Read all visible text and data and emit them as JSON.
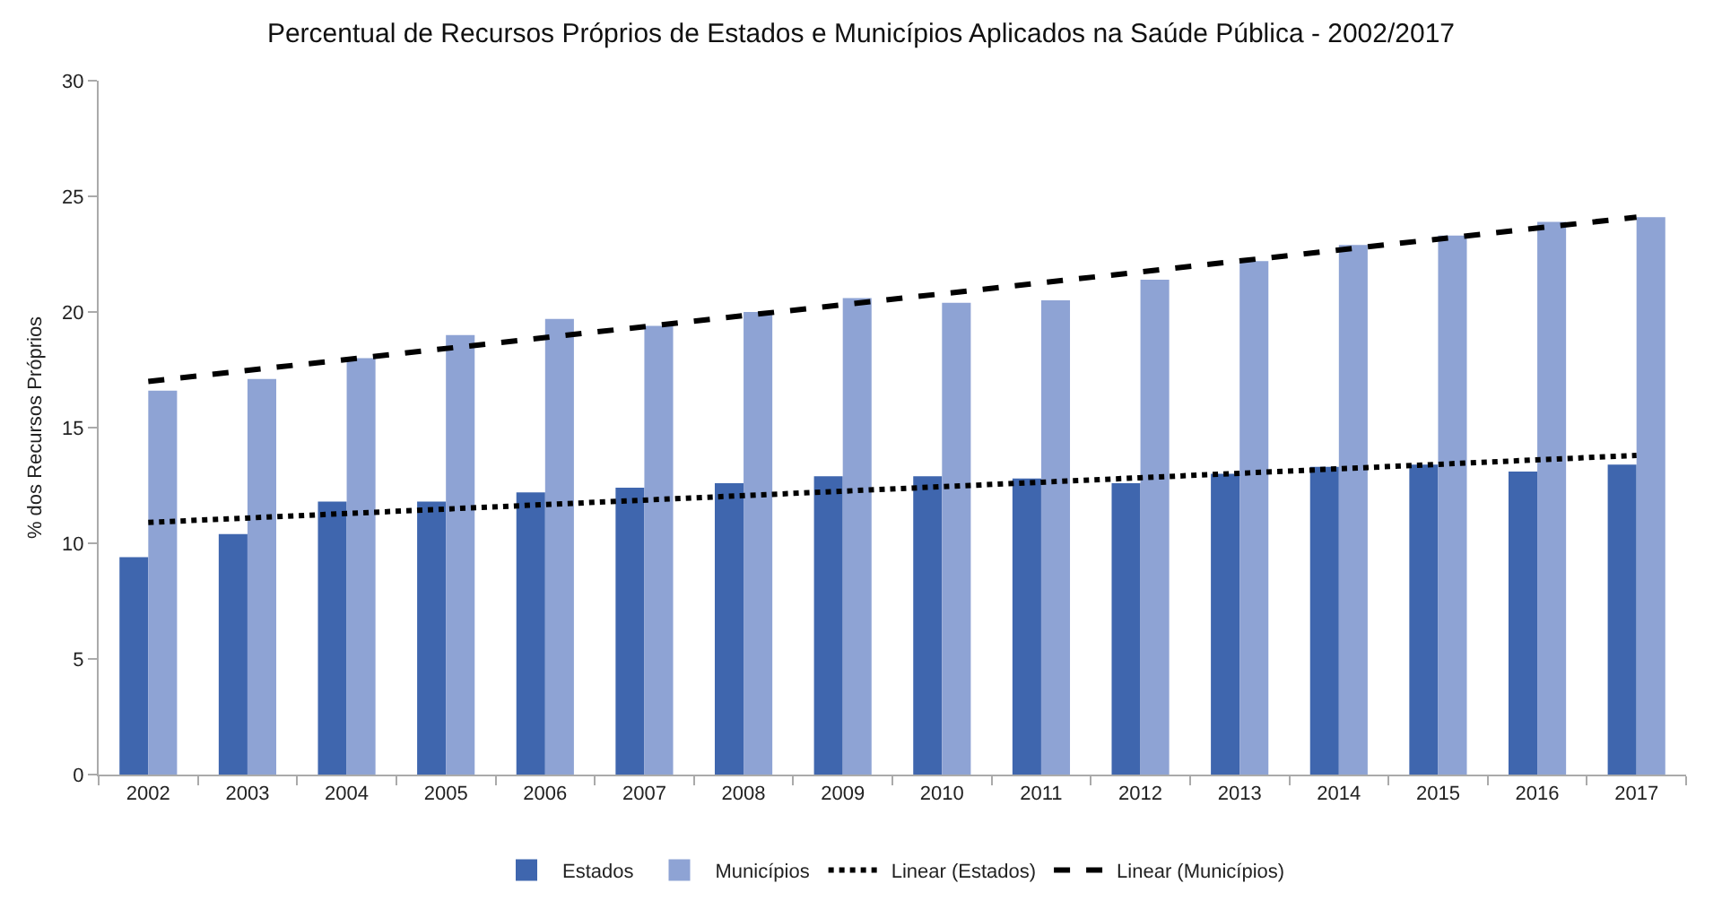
{
  "chart_data": {
    "type": "bar",
    "title": "Percentual de Recursos Próprios de Estados e Municípios Aplicados na Saúde Pública - 2002/2017",
    "ylabel": "% dos Recursos Próprios",
    "categories": [
      "2002",
      "2003",
      "2004",
      "2005",
      "2006",
      "2007",
      "2008",
      "2009",
      "2010",
      "2011",
      "2012",
      "2013",
      "2014",
      "2015",
      "2016",
      "2017"
    ],
    "series": [
      {
        "name": "Estados",
        "color": "#3f66ae",
        "values": [
          9.4,
          10.4,
          11.8,
          11.8,
          12.2,
          12.4,
          12.6,
          12.9,
          12.9,
          12.8,
          12.6,
          13.0,
          13.3,
          13.4,
          13.1,
          13.4
        ]
      },
      {
        "name": "Municípios",
        "color": "#8ea3d4",
        "values": [
          16.6,
          17.1,
          18.0,
          19.0,
          19.7,
          19.4,
          20.0,
          20.6,
          20.4,
          20.5,
          21.4,
          22.2,
          22.9,
          23.3,
          23.9,
          24.1
        ]
      },
      {
        "name": "Linear (Estados)",
        "type": "line",
        "line_style": "dotted",
        "color": "#000000",
        "values": [
          10.9,
          null,
          null,
          null,
          null,
          null,
          null,
          null,
          null,
          null,
          null,
          null,
          null,
          null,
          null,
          13.8
        ]
      },
      {
        "name": "Linear (Municípios)",
        "type": "line",
        "line_style": "dashed",
        "color": "#000000",
        "values": [
          17.0,
          null,
          null,
          null,
          null,
          null,
          null,
          null,
          null,
          null,
          null,
          null,
          null,
          null,
          null,
          24.1
        ]
      }
    ],
    "ylim": [
      0,
      30
    ],
    "yticks": [
      0,
      5,
      10,
      15,
      20,
      25,
      30
    ],
    "grid": false,
    "legend": "bottom"
  }
}
